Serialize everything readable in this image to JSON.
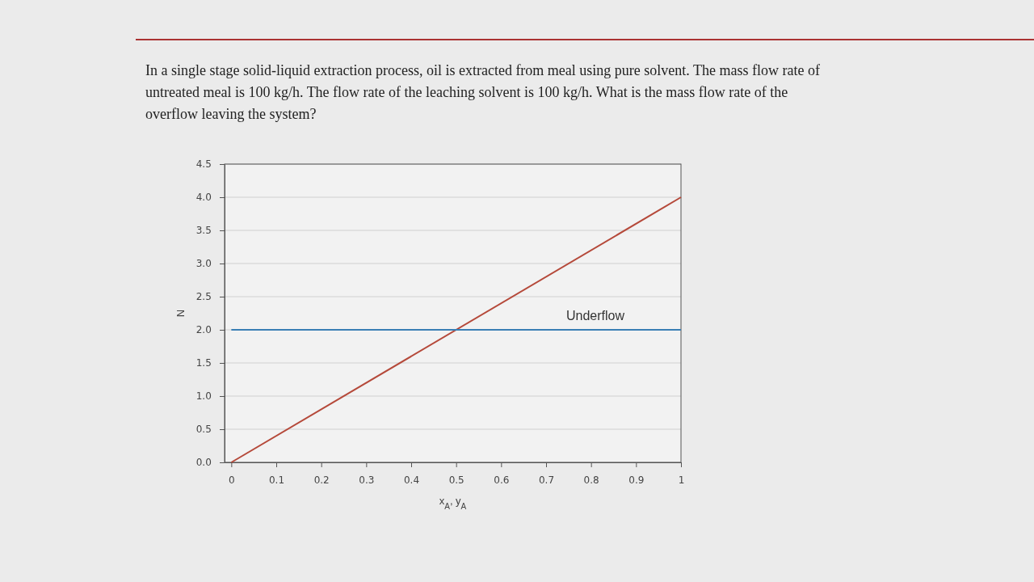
{
  "chart_data": {
    "type": "line",
    "title": "In a single stage solid-liquid extraction process, oil is extracted from meal using pure solvent. The mass flow rate of untreated meal is 100 kg/h. The flow rate of the leaching solvent is 100 kg/h. What is the mass flow rate of the overflow leaving the system?",
    "xlabel": "x$_{A}$, y$_{A}$",
    "ylabel": "N",
    "series": [
      {
        "color": "#b5493a",
        "values": [
          0,
          4
        ]
      },
      {
        "name": "Underflow",
        "color": "#3a7fb5",
        "values": [
          2,
          2
        ]
      }
    ],
    "x": [
      0,
      1
    ],
    "xlim": [
      -0.015,
      1
    ],
    "ylim": [
      0,
      4.5
    ],
    "xticks": [
      0,
      0.1,
      0.2,
      0.3,
      0.4,
      0.5,
      0.6,
      0.7,
      0.8,
      0.9,
      1
    ],
    "yticks": [
      {
        "value": 0,
        "label": "0.0"
      },
      {
        "value": 0.5,
        "label": "0.5"
      },
      {
        "value": 1,
        "label": "1.0"
      },
      {
        "value": 1.5,
        "label": "1.5"
      },
      {
        "value": 2,
        "label": "2.0"
      },
      {
        "value": 2.5,
        "label": "2.5"
      },
      {
        "value": 3,
        "label": "3.0"
      },
      {
        "value": 3.5,
        "label": "3.5"
      },
      {
        "value": 4,
        "label": "4.0"
      },
      {
        "value": 4.5,
        "label": "4.5"
      }
    ],
    "grid": "y",
    "marker": "none",
    "line_style": "solid"
  }
}
